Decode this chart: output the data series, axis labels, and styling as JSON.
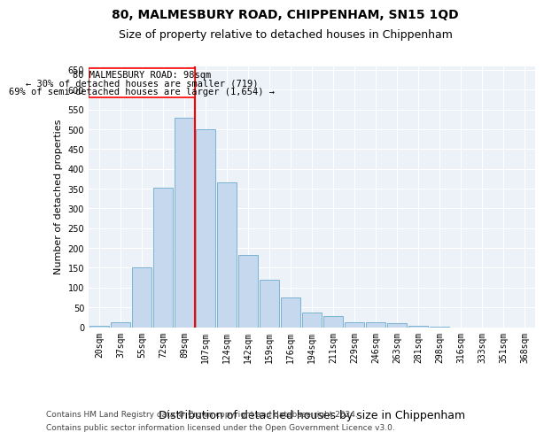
{
  "title": "80, MALMESBURY ROAD, CHIPPENHAM, SN15 1QD",
  "subtitle": "Size of property relative to detached houses in Chippenham",
  "xlabel": "Distribution of detached houses by size in Chippenham",
  "ylabel": "Number of detached properties",
  "categories": [
    "20sqm",
    "37sqm",
    "55sqm",
    "72sqm",
    "89sqm",
    "107sqm",
    "124sqm",
    "142sqm",
    "159sqm",
    "176sqm",
    "194sqm",
    "211sqm",
    "229sqm",
    "246sqm",
    "263sqm",
    "281sqm",
    "298sqm",
    "316sqm",
    "333sqm",
    "351sqm",
    "368sqm"
  ],
  "values": [
    3,
    13,
    150,
    353,
    530,
    500,
    365,
    183,
    120,
    75,
    38,
    27,
    12,
    12,
    10,
    3,
    1,
    0,
    0,
    0,
    0
  ],
  "bar_color": "#c5d8ed",
  "bar_edge_color": "#7ab3d4",
  "annotation_text_line1": "80 MALMESBURY ROAD: 98sqm",
  "annotation_text_line2": "← 30% of detached houses are smaller (719)",
  "annotation_text_line3": "69% of semi-detached houses are larger (1,654) →",
  "ylim": [
    0,
    660
  ],
  "yticks": [
    0,
    50,
    100,
    150,
    200,
    250,
    300,
    350,
    400,
    450,
    500,
    550,
    600,
    650
  ],
  "background_color": "#edf2f9",
  "footer_line1": "Contains HM Land Registry data © Crown copyright and database right 2024.",
  "footer_line2": "Contains public sector information licensed under the Open Government Licence v3.0.",
  "title_fontsize": 10,
  "subtitle_fontsize": 9,
  "xlabel_fontsize": 9,
  "ylabel_fontsize": 8,
  "tick_fontsize": 7,
  "annotation_fontsize": 7.5,
  "footer_fontsize": 6.5
}
